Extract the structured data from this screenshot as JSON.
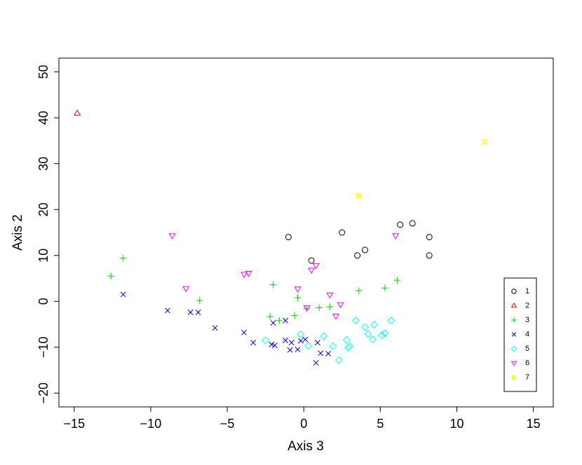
{
  "chart_data": {
    "type": "scatter",
    "title": "",
    "xlabel": "Axis 3",
    "ylabel": "Axis 2",
    "xlim": [
      -16,
      16.3
    ],
    "ylim": [
      -23,
      53
    ],
    "xticks": [
      "−15",
      "−10",
      "−5",
      "0",
      "5",
      "10",
      "15"
    ],
    "xtick_values": [
      -15,
      -10,
      -5,
      0,
      5,
      10,
      15
    ],
    "yticks": [
      "−20",
      "−10",
      "0",
      "10",
      "20",
      "30",
      "40",
      "50"
    ],
    "ytick_values": [
      -20,
      -10,
      0,
      10,
      20,
      30,
      40,
      50
    ],
    "grid": false,
    "legend_position": "bottom-right",
    "series": [
      {
        "name": "1",
        "color": "#000000",
        "marker": "circle",
        "points": [
          [
            -1.0,
            14.0
          ],
          [
            0.5,
            8.9
          ],
          [
            2.5,
            15.0
          ],
          [
            3.5,
            10.0
          ],
          [
            4.0,
            11.2
          ],
          [
            6.3,
            16.7
          ],
          [
            7.1,
            17.0
          ],
          [
            8.2,
            14.0
          ],
          [
            8.2,
            10.0
          ]
        ]
      },
      {
        "name": "2",
        "color": "#ff0000",
        "marker": "triangle-up",
        "points": [
          [
            -14.8,
            41.0
          ]
        ]
      },
      {
        "name": "3",
        "color": "#00cd00",
        "marker": "plus",
        "points": [
          [
            -12.6,
            5.5
          ],
          [
            -11.8,
            9.4
          ],
          [
            -6.8,
            0.2
          ],
          [
            -2.0,
            3.6
          ],
          [
            -2.2,
            -3.3
          ],
          [
            -1.6,
            -4.2
          ],
          [
            -0.4,
            0.8
          ],
          [
            -0.6,
            -3.1
          ],
          [
            0.2,
            -1.6
          ],
          [
            1.0,
            -1.4
          ],
          [
            1.7,
            -1.2
          ],
          [
            3.6,
            2.3
          ],
          [
            5.3,
            2.9
          ],
          [
            6.1,
            4.6
          ]
        ]
      },
      {
        "name": "4",
        "color": "#0000cd",
        "marker": "cross",
        "points": [
          [
            -11.8,
            1.5
          ],
          [
            -8.9,
            -2.0
          ],
          [
            -7.4,
            -2.4
          ],
          [
            -6.9,
            -2.4
          ],
          [
            -5.8,
            -5.8
          ],
          [
            -3.9,
            -6.8
          ],
          [
            -3.3,
            -9.0
          ],
          [
            -2.0,
            -4.7
          ],
          [
            -2.1,
            -9.4
          ],
          [
            -1.9,
            -9.6
          ],
          [
            -1.2,
            -4.2
          ],
          [
            -1.2,
            -8.5
          ],
          [
            -0.9,
            -10.6
          ],
          [
            -0.8,
            -9.0
          ],
          [
            -0.4,
            -10.5
          ],
          [
            -0.2,
            -8.6
          ],
          [
            0.1,
            -8.3
          ],
          [
            0.9,
            -9.0
          ],
          [
            1.1,
            -11.3
          ],
          [
            1.6,
            -11.4
          ],
          [
            0.8,
            -13.4
          ]
        ]
      },
      {
        "name": "5",
        "color": "#00ffff",
        "marker": "diamond",
        "points": [
          [
            -2.5,
            -8.5
          ],
          [
            -0.2,
            -7.2
          ],
          [
            0.3,
            -9.7
          ],
          [
            1.3,
            -7.6
          ],
          [
            1.9,
            -9.8
          ],
          [
            2.3,
            -12.8
          ],
          [
            2.8,
            -8.4
          ],
          [
            2.9,
            -10.1
          ],
          [
            3.0,
            -9.8
          ],
          [
            3.4,
            -4.2
          ],
          [
            4.0,
            -5.6
          ],
          [
            4.2,
            -7.1
          ],
          [
            4.6,
            -5.1
          ],
          [
            4.5,
            -8.3
          ],
          [
            5.1,
            -7.4
          ],
          [
            5.3,
            -7.0
          ],
          [
            5.7,
            -4.2
          ]
        ]
      },
      {
        "name": "6",
        "color": "#ff00ff",
        "marker": "triangle-down",
        "points": [
          [
            -8.6,
            14.3
          ],
          [
            -7.7,
            2.8
          ],
          [
            -3.9,
            5.9
          ],
          [
            -3.6,
            6.1
          ],
          [
            -0.4,
            2.7
          ],
          [
            0.2,
            -1.4
          ],
          [
            0.5,
            6.8
          ],
          [
            0.8,
            7.8
          ],
          [
            1.7,
            1.4
          ],
          [
            2.1,
            -3.2
          ],
          [
            2.4,
            -0.7
          ],
          [
            6.0,
            14.3
          ]
        ]
      },
      {
        "name": "7",
        "color": "#ffff00",
        "marker": "square-x",
        "points": [
          [
            3.6,
            23.0
          ],
          [
            11.8,
            34.7
          ]
        ]
      }
    ]
  }
}
